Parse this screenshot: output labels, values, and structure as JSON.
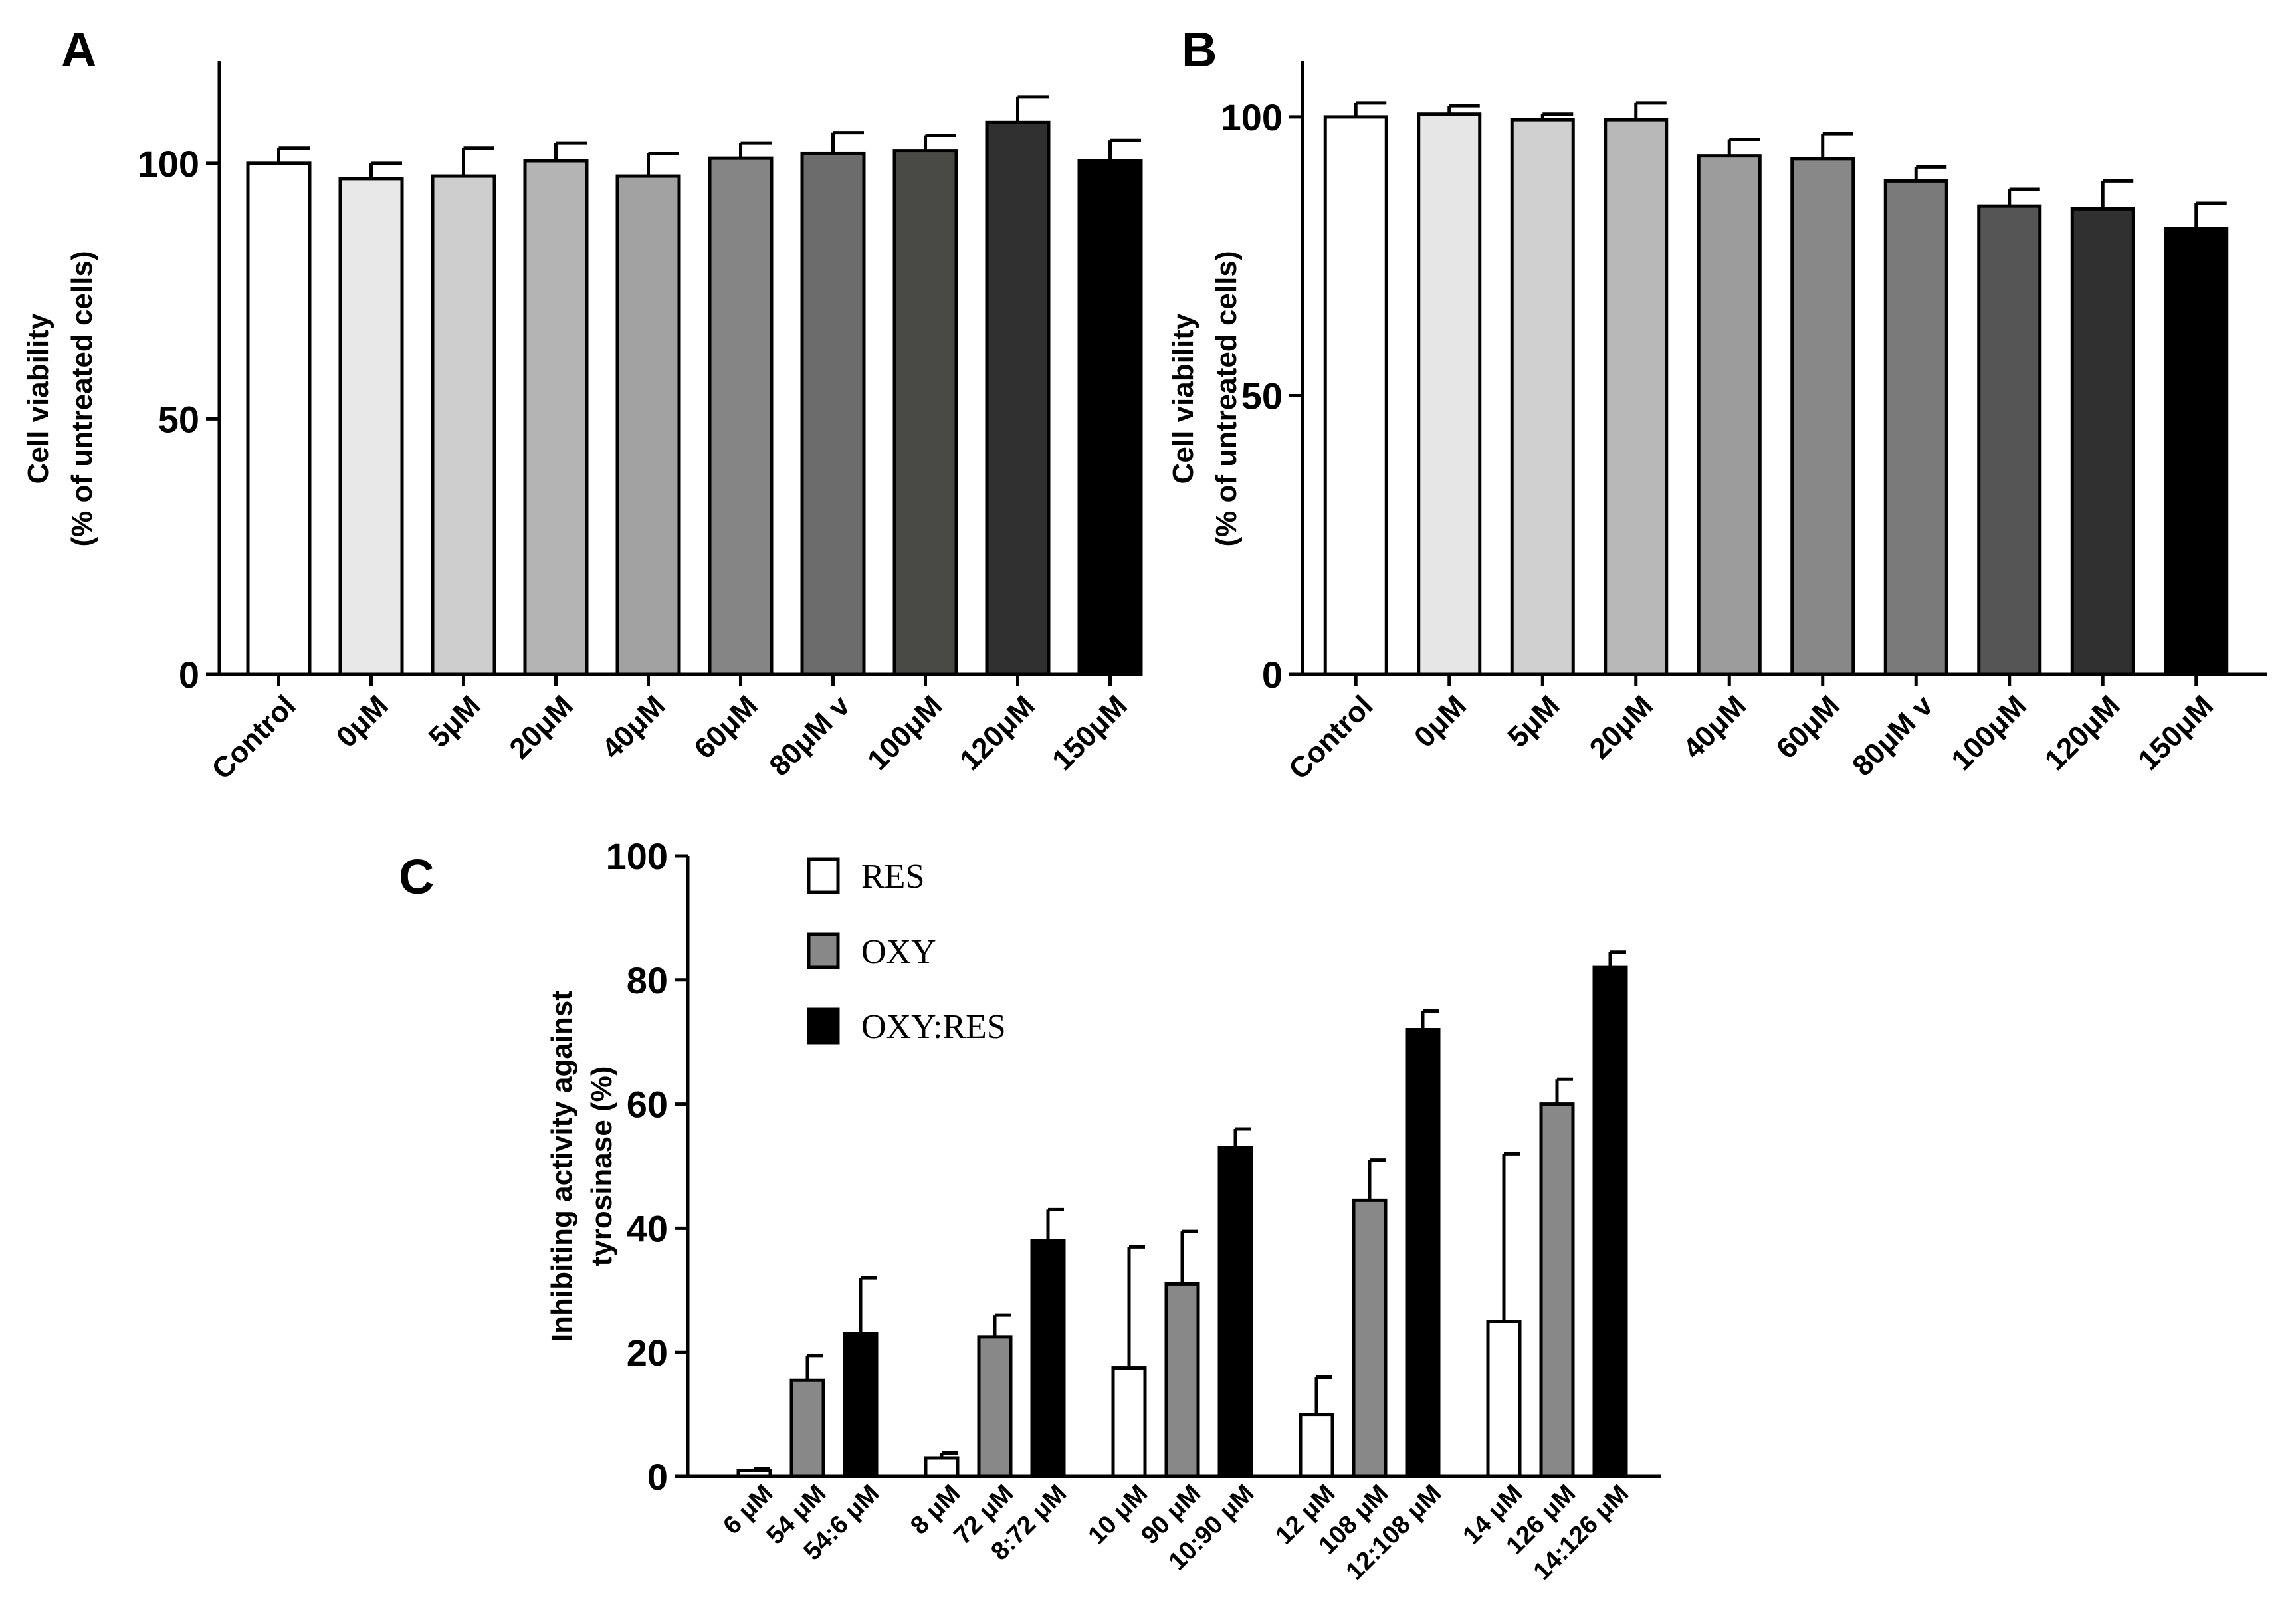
{
  "chart_data": [
    {
      "panel": "A",
      "type": "bar",
      "ylabel": [
        "Cell viability",
        "(% of untreated cells)"
      ],
      "ylim": [
        0,
        120
      ],
      "yticks": [
        0,
        50,
        100
      ],
      "categories": [
        "Control",
        "0μM",
        "5μM",
        "20μM",
        "40μM",
        "60μM",
        "80μM v",
        "100μM",
        "120μM",
        "150μM"
      ],
      "values": [
        100,
        97,
        97.5,
        100.5,
        97.5,
        101,
        102,
        102.5,
        108,
        100.5
      ],
      "errors": [
        3,
        3,
        5.5,
        3.5,
        4.5,
        3,
        4,
        3,
        5,
        4
      ],
      "colors": [
        "#ffffff",
        "#e8e8e8",
        "#cecece",
        "#b4b4b4",
        "#a2a2a2",
        "#858585",
        "#6c6c6c",
        "#4a4a45",
        "#303030",
        "#000000"
      ]
    },
    {
      "panel": "B",
      "type": "bar",
      "ylabel": [
        "Cell viability",
        "(% of untreated cells)"
      ],
      "ylim": [
        0,
        110
      ],
      "yticks": [
        0,
        50,
        100
      ],
      "categories": [
        "Control",
        "0μM",
        "5μM",
        "20μM",
        "40μM",
        "60μM",
        "80μM v",
        "100μM",
        "120μM",
        "150μM"
      ],
      "values": [
        100,
        100.5,
        99.5,
        99.5,
        93,
        92.5,
        88.5,
        84,
        83.5,
        80
      ],
      "errors": [
        2.5,
        1.5,
        1,
        3,
        3,
        4.5,
        2.5,
        3,
        5,
        4.5
      ],
      "colors": [
        "#ffffff",
        "#e6e6e6",
        "#d0d0d0",
        "#b8b8b8",
        "#9c9c9c",
        "#888888",
        "#7a7a7a",
        "#555555",
        "#303030",
        "#000000"
      ]
    },
    {
      "panel": "C",
      "type": "bar",
      "ylabel": [
        "Inhibiting activity against",
        "tyrosinase (%)"
      ],
      "ylim": [
        0,
        100
      ],
      "yticks": [
        0,
        20,
        40,
        60,
        80,
        100
      ],
      "groups": [
        [
          "6 μM",
          "54 μM",
          "54:6 μM"
        ],
        [
          "8 μM",
          "72 μM",
          "8:72 μM"
        ],
        [
          "10 μM",
          "90 μM",
          "10:90 μM"
        ],
        [
          "12 μM",
          "108 μM",
          "12:108 μM"
        ],
        [
          "14 μM",
          "126 μM",
          "14:126 μM"
        ]
      ],
      "series": [
        {
          "name": "RES",
          "color": "#ffffff",
          "values": [
            1,
            3,
            17.5,
            10,
            25
          ],
          "errors": [
            0.3,
            0.8,
            19.5,
            6,
            27
          ]
        },
        {
          "name": "OXY",
          "color": "#888888",
          "values": [
            15.5,
            22.5,
            31,
            44.5,
            60
          ],
          "errors": [
            4,
            3.5,
            8.5,
            6.5,
            4
          ]
        },
        {
          "name": "OXY:RES",
          "color": "#000000",
          "values": [
            23,
            38,
            53,
            72,
            82
          ],
          "errors": [
            9,
            5,
            3,
            3,
            2.5
          ]
        }
      ],
      "legend_position": "top-left"
    }
  ]
}
